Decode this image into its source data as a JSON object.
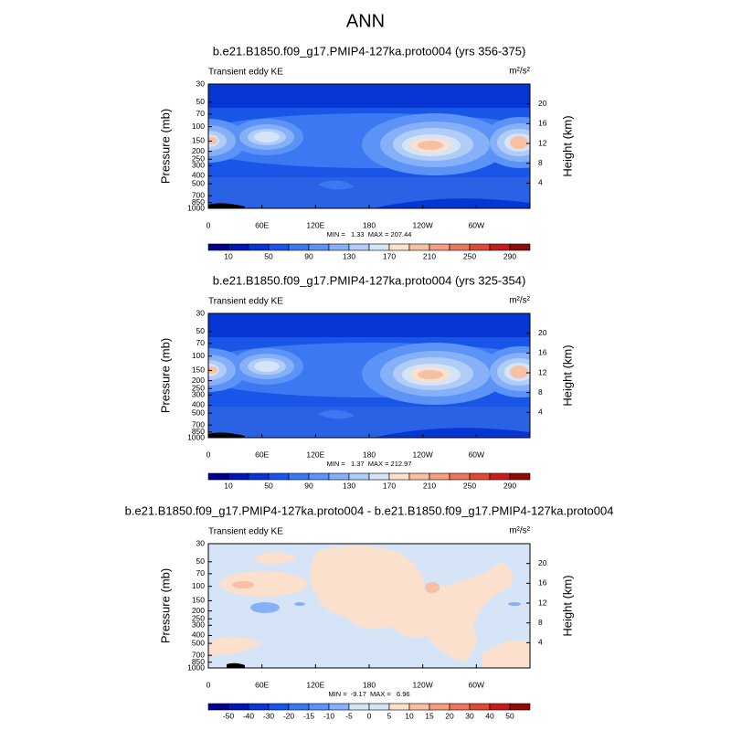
{
  "title": "ANN",
  "chart_data": [
    {
      "type": "contour",
      "title": "b.e21.B1850.f09_g17.PMIP4-127ka.proto004 (yrs 356-375)",
      "subtitle": "Transient eddy KE",
      "units": "m²/s²",
      "ylabel": "Pressure (mb)",
      "y2label": "Height (km)",
      "xlim": [
        0,
        360
      ],
      "xticks": [
        0,
        {
          "value": 60,
          "label": "60E"
        },
        {
          "value": 120,
          "label": "120E"
        },
        180,
        {
          "value": 240,
          "label": "120W"
        },
        {
          "value": 300,
          "label": "60W"
        }
      ],
      "ylim": [
        1000,
        30
      ],
      "ylog": true,
      "yticks": [
        30,
        50,
        70,
        100,
        150,
        200,
        250,
        300,
        400,
        500,
        700,
        850,
        1000
      ],
      "y2lim": [
        -1.1,
        24
      ],
      "y2ticks": [
        4,
        8,
        12,
        16,
        20
      ],
      "min_max": "MIN =   1.33  MAX = 207.44",
      "colorbar": {
        "labels": [
          10,
          50,
          90,
          130,
          170,
          210,
          250,
          290
        ],
        "colors": [
          "#00008a",
          "#0016b4",
          "#0636d4",
          "#1956e8",
          "#3b78f2",
          "#5c93f6",
          "#86b0f7",
          "#b0cdf7",
          "#d6e4f7",
          "#fbe0cd",
          "#f7c0a3",
          "#f39e7e",
          "#ec765b",
          "#df4a37",
          "#c41e1c",
          "#8e0b0a"
        ]
      }
    },
    {
      "type": "contour",
      "title": "b.e21.B1850.f09_g17.PMIP4-127ka.proto004 (yrs 325-354)",
      "subtitle": "Transient eddy KE",
      "units": "m²/s²",
      "ylabel": "Pressure (mb)",
      "y2label": "Height (km)",
      "xlim": [
        0,
        360
      ],
      "xticks": [
        0,
        {
          "value": 60,
          "label": "60E"
        },
        {
          "value": 120,
          "label": "120E"
        },
        180,
        {
          "value": 240,
          "label": "120W"
        },
        {
          "value": 300,
          "label": "60W"
        }
      ],
      "ylim": [
        1000,
        30
      ],
      "ylog": true,
      "yticks": [
        30,
        50,
        70,
        100,
        150,
        200,
        250,
        300,
        400,
        500,
        700,
        850,
        1000
      ],
      "y2lim": [
        -1.1,
        24
      ],
      "y2ticks": [
        4,
        8,
        12,
        16,
        20
      ],
      "min_max": "MIN =   1.37  MAX = 212.97",
      "colorbar": {
        "labels": [
          10,
          50,
          90,
          130,
          170,
          210,
          250,
          290
        ],
        "colors": [
          "#00008a",
          "#0016b4",
          "#0636d4",
          "#1956e8",
          "#3b78f2",
          "#5c93f6",
          "#86b0f7",
          "#b0cdf7",
          "#d6e4f7",
          "#fbe0cd",
          "#f7c0a3",
          "#f39e7e",
          "#ec765b",
          "#df4a37",
          "#c41e1c",
          "#8e0b0a"
        ]
      }
    },
    {
      "type": "contour",
      "title": "b.e21.B1850.f09_g17.PMIP4-127ka.proto004 - b.e21.B1850.f09_g17.PMIP4-127ka.proto004",
      "subtitle": "Transient eddy KE",
      "units": "m²/s²",
      "ylabel": "Pressure (mb)",
      "y2label": "Height (km)",
      "xlim": [
        0,
        360
      ],
      "xticks": [
        0,
        {
          "value": 60,
          "label": "60E"
        },
        {
          "value": 120,
          "label": "120E"
        },
        180,
        {
          "value": 240,
          "label": "120W"
        },
        {
          "value": 300,
          "label": "60W"
        }
      ],
      "ylim": [
        1000,
        30
      ],
      "ylog": true,
      "yticks": [
        30,
        50,
        70,
        100,
        150,
        200,
        250,
        300,
        400,
        500,
        700,
        850,
        1000
      ],
      "y2lim": [
        -1.1,
        24
      ],
      "y2ticks": [
        4,
        8,
        12,
        16,
        20
      ],
      "min_max": "MIN =  -9.17  MAX =   6.96",
      "colorbar": {
        "labels": [
          -50,
          -40,
          -30,
          -20,
          -15,
          -10,
          -5,
          0,
          5,
          10,
          15,
          20,
          30,
          40,
          50
        ],
        "colors": [
          "#00008a",
          "#0016b4",
          "#0636d4",
          "#1956e8",
          "#3b78f2",
          "#5c93f6",
          "#86b0f7",
          "#d6e4f7",
          "#d6e4f7",
          "#fbe0cd",
          "#f7c0a3",
          "#f39e7e",
          "#ec765b",
          "#df4a37",
          "#c41e1c",
          "#8e0b0a"
        ]
      }
    }
  ]
}
